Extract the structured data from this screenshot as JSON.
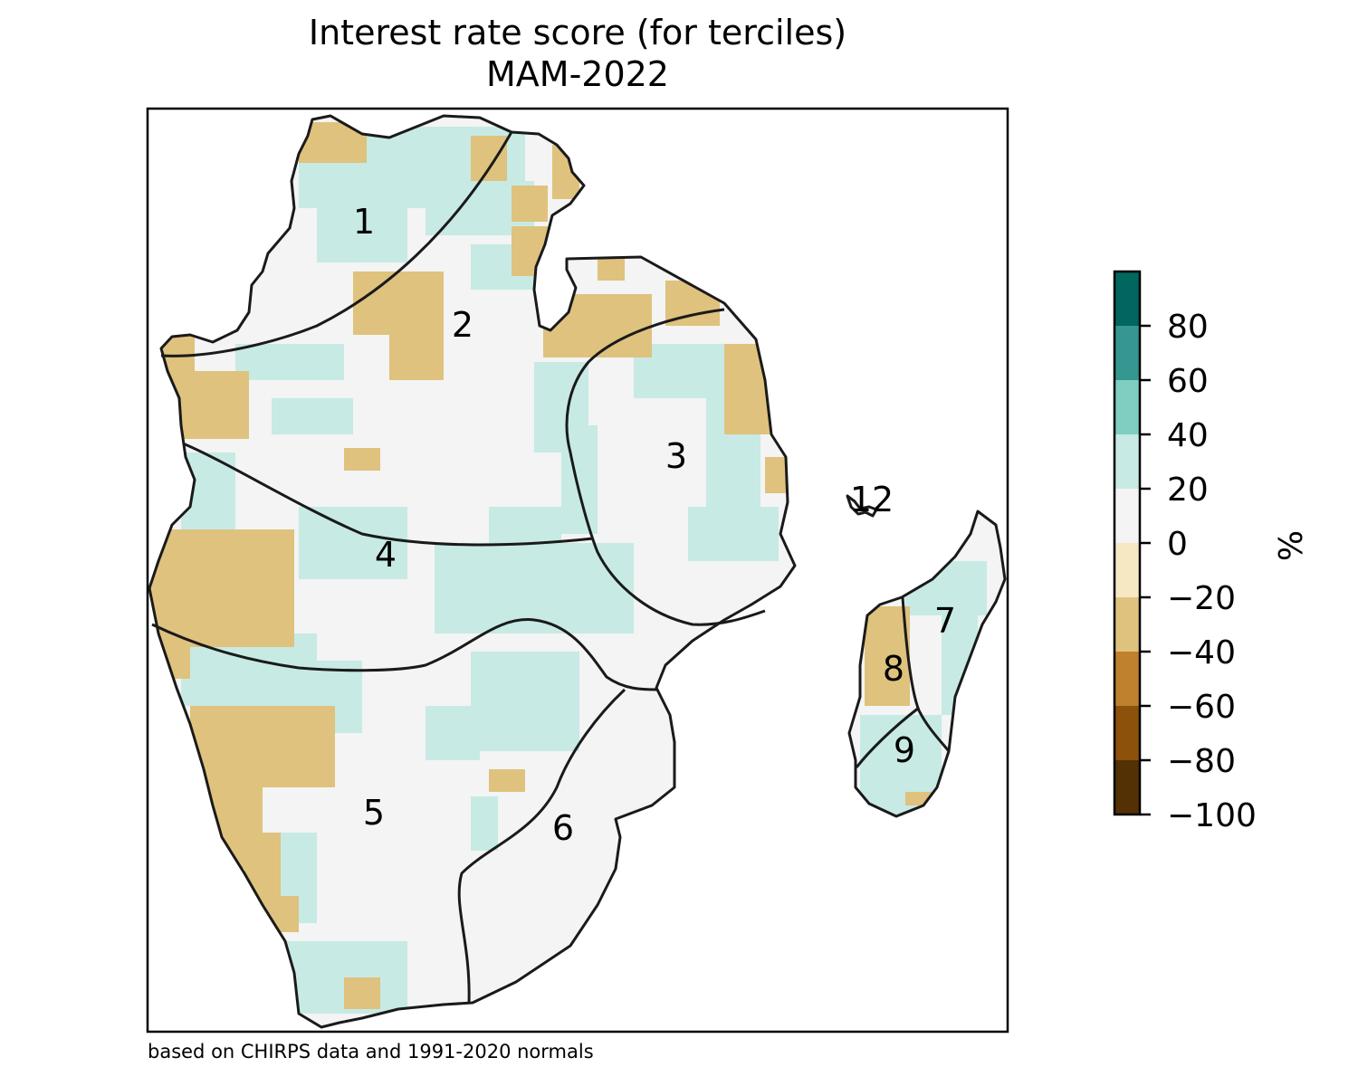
{
  "title": "Interest rate score (for terciles)",
  "subtitle": "MAM-2022",
  "footnote": "based on CHIRPS data and 1991-2020 normals",
  "colorbar": {
    "label": "%",
    "ticks": [
      "80",
      "60",
      "40",
      "20",
      "0",
      "−20",
      "−40",
      "−60",
      "−80",
      "−100"
    ],
    "bins": [
      {
        "range": "80 to 100",
        "color": "#01665e"
      },
      {
        "range": "60 to 80",
        "color": "#35978f"
      },
      {
        "range": "40 to 60",
        "color": "#80cdc1"
      },
      {
        "range": "20 to 40",
        "color": "#c7eae5"
      },
      {
        "range": "0 to 20",
        "color": "#f3f4f3"
      },
      {
        "range": "-20 to 0",
        "color": "#f6e8c3"
      },
      {
        "range": "-40 to -20",
        "color": "#dfc27d"
      },
      {
        "range": "-60 to -40",
        "color": "#bf812d"
      },
      {
        "range": "-80 to -60",
        "color": "#8c510a"
      },
      {
        "range": "-100 to -80",
        "color": "#543005"
      }
    ]
  },
  "zones": [
    {
      "id": "1",
      "label": "1"
    },
    {
      "id": "2",
      "label": "2"
    },
    {
      "id": "3",
      "label": "3"
    },
    {
      "id": "4",
      "label": "4"
    },
    {
      "id": "5",
      "label": "5"
    },
    {
      "id": "6",
      "label": "6"
    },
    {
      "id": "7",
      "label": "7"
    },
    {
      "id": "8",
      "label": "8"
    },
    {
      "id": "9",
      "label": "9"
    },
    {
      "id": "12",
      "label": "12"
    }
  ],
  "colors": {
    "positive_0_20": "#f3f4f3",
    "positive_20_40": "#c7eae5",
    "negative_20_40": "#dfc27d",
    "outline": "#1a1a1a"
  }
}
